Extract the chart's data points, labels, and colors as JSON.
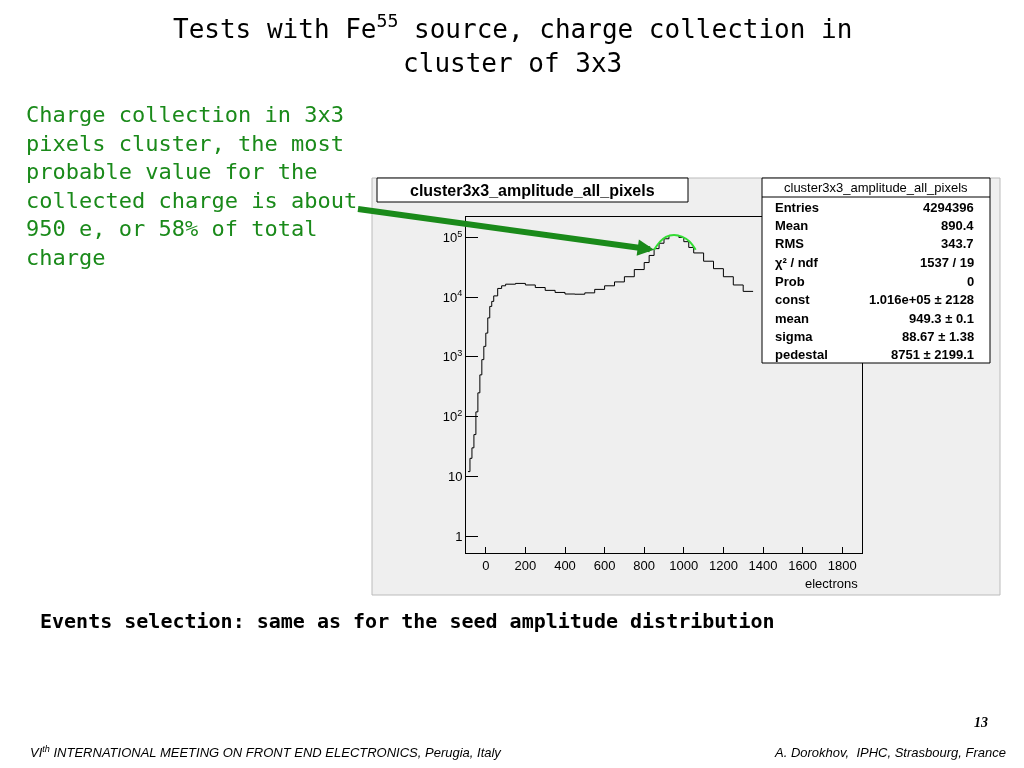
{
  "chart_data": {
    "type": "histogram",
    "title": "Tests with Fe$^{55}$ source, charge collection in cluster of 3x3",
    "xlabel": "electrons",
    "bins": [
      -90,
      -80,
      -70,
      -60,
      -50,
      -40,
      -30,
      -20,
      -10,
      0,
      10,
      20,
      30,
      40,
      60,
      80,
      100,
      150,
      200,
      250,
      300,
      350,
      400,
      450,
      500,
      550,
      600,
      650,
      700,
      750,
      800,
      825,
      850,
      875,
      900,
      925,
      950,
      975,
      1000,
      1025,
      1050,
      1100,
      1150,
      1200,
      1250,
      1300,
      1350
    ],
    "values": [
      12,
      20,
      30,
      50,
      120,
      250,
      500,
      900,
      1500,
      2500,
      4500,
      7000,
      8500,
      10500,
      14000,
      15500,
      16500,
      17000,
      16000,
      14500,
      13000,
      12000,
      11300,
      11200,
      11800,
      13500,
      15500,
      18000,
      22000,
      29000,
      38000,
      50000,
      65000,
      80000,
      95000,
      108000,
      108000,
      100000,
      85000,
      68000,
      55000,
      40000,
      30000,
      22000,
      16000,
      12500
    ],
    "color": "#000000",
    "series": [
      {
        "type": "line",
        "color": "#33dd33",
        "x": [
          850,
          880,
          910,
          950,
          990,
          1030,
          1060
        ],
        "values": [
          62000,
          85000,
          102000,
          110000,
          103000,
          85000,
          62000
        ]
      }
    ],
    "log": "y",
    "xlim": [
      -100,
      1900
    ],
    "ylim": [
      0.52,
      220000
    ],
    "xticks": [
      0,
      200,
      400,
      600,
      800,
      1000,
      1200,
      1400,
      1600,
      1800
    ],
    "yticks": [
      1,
      10,
      {
        "value": 100,
        "label": "10$^{2}$"
      },
      {
        "value": 1000,
        "label": "10$^{3}$"
      },
      {
        "value": 10000,
        "label": "10$^{4}$"
      },
      {
        "value": 100000,
        "label": "10$^{5}$"
      }
    ],
    "grid": false,
    "annotations": [
      {
        "text": "Charge collection in 3x3 pixels cluster, the most probable value for the collected charge is about 950 e, or 58% of total charge",
        "x": 850,
        "y": 62000
      },
      "cluster3x3_amplitude_all_pixels",
      "cluster3x3_amplitude_all_pixels",
      "Entries",
      "4294396",
      "Mean",
      "890.4",
      "RMS",
      "343.7",
      "χ² / ndf",
      "1537 / 19",
      "Prob",
      "0",
      "const",
      "1.016e+05 ± 2128",
      "mean",
      "949.3 ± 0.1",
      "sigma",
      "88.67 ± 1.38",
      "pedestal",
      "8751 ± 2199.1",
      "Events selection: same as for the seed amplitude distribution",
      "13",
      "VI$^{th}$ INTERNATIONAL MEETING ON FRONT END ELECTRONICS, Perugia, Italy",
      "A. Dorokhov,  IPHC, Strasbourg, France"
    ]
  }
}
